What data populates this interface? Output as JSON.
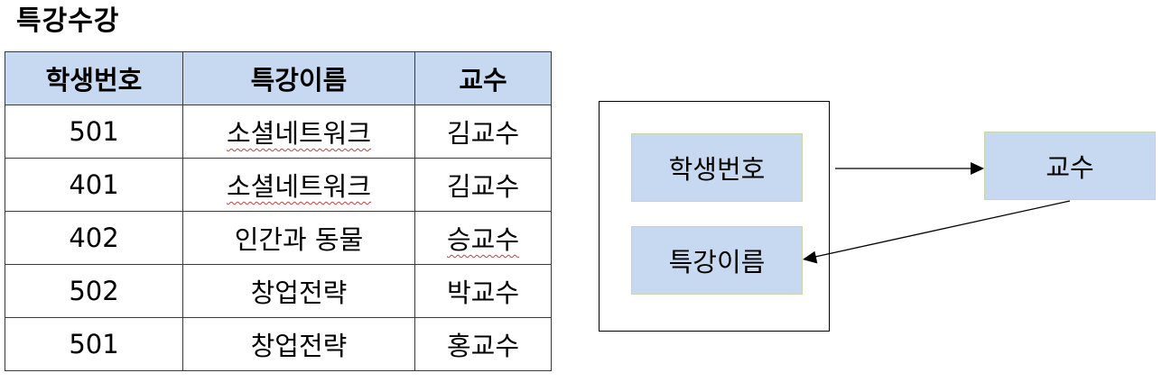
{
  "title": "특강수강",
  "table": {
    "headers": [
      "학생번호",
      "특강이름",
      "교수"
    ],
    "rows": [
      [
        "501",
        "소셜네트워크",
        "김교수"
      ],
      [
        "401",
        "소셜네트워크",
        "김교수"
      ],
      [
        "402",
        "인간과 동물",
        "승교수"
      ],
      [
        "502",
        "창업전략",
        "박교수"
      ],
      [
        "501",
        "창업전략",
        "홍교수"
      ]
    ]
  },
  "diagram": {
    "attr_student": "학생번호",
    "attr_lecture": "특강이름",
    "attr_professor": "교수"
  },
  "colors": {
    "header_fill": "#c7d9f1",
    "box_fill": "#c7d9f1",
    "spellcheck_underline": "#d03a3a"
  }
}
